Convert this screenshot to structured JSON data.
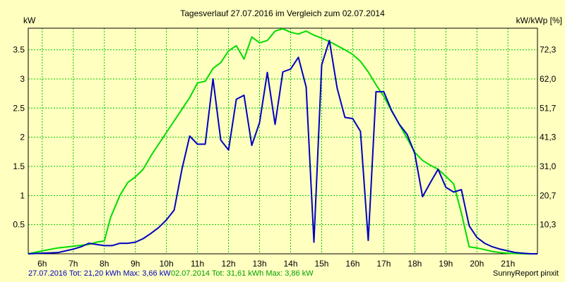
{
  "chart_data": {
    "type": "line",
    "title": "Tagesverlauf 27.07.2016 im Vergleich zum 02.07.2014",
    "ylabel_left": "kW",
    "ylabel_right": "kW/kWp [%]",
    "xlim": [
      5.55,
      21.95
    ],
    "ylim": [
      0,
      3.87
    ],
    "x_ticks": [
      6,
      7,
      8,
      9,
      10,
      11,
      12,
      13,
      14,
      15,
      16,
      17,
      18,
      19,
      20,
      21
    ],
    "x_tick_labels": [
      "6h",
      "7h",
      "8h",
      "9h",
      "10h",
      "11h",
      "12h",
      "13h",
      "14h",
      "15h",
      "16h",
      "17h",
      "18h",
      "19h",
      "20h",
      "21h"
    ],
    "y_ticks_left": [
      0.5,
      1,
      1.5,
      2,
      2.5,
      3,
      3.5
    ],
    "y_tick_labels_left": [
      "0.5",
      "1",
      "1.5",
      "2",
      "2.5",
      "3",
      "3.5"
    ],
    "y_ticks_right": [
      0.5,
      1,
      1.5,
      2,
      2.5,
      3,
      3.5
    ],
    "y_tick_labels_right": [
      "10,3",
      "20,7",
      "31,0",
      "41,3",
      "51,7",
      "62,0",
      "72,3"
    ],
    "grid": true,
    "series": [
      {
        "name": "27.07.2016",
        "color": "#0000c0",
        "x": [
          5.55,
          6.5,
          7.0,
          7.25,
          7.5,
          8.0,
          8.25,
          8.5,
          8.75,
          9.0,
          9.25,
          9.5,
          9.75,
          10.0,
          10.25,
          10.5,
          10.75,
          11.0,
          11.25,
          11.5,
          11.75,
          12.0,
          12.25,
          12.5,
          12.75,
          13.0,
          13.25,
          13.5,
          13.75,
          14.0,
          14.25,
          14.5,
          14.75,
          15.0,
          15.25,
          15.5,
          15.75,
          16.0,
          16.25,
          16.5,
          16.75,
          17.0,
          17.25,
          17.5,
          17.75,
          18.0,
          18.25,
          18.5,
          18.75,
          19.0,
          19.25,
          19.5,
          19.75,
          20.0,
          20.25,
          20.5,
          20.75,
          21.0,
          21.25,
          21.5,
          21.75,
          21.95
        ],
        "y": [
          0.0,
          0.02,
          0.08,
          0.12,
          0.18,
          0.14,
          0.14,
          0.18,
          0.18,
          0.2,
          0.26,
          0.35,
          0.45,
          0.58,
          0.75,
          1.45,
          2.02,
          1.88,
          1.88,
          3.0,
          1.95,
          1.78,
          2.65,
          2.72,
          1.86,
          2.25,
          3.11,
          2.22,
          3.12,
          3.17,
          3.37,
          2.86,
          0.2,
          3.24,
          3.66,
          2.84,
          2.34,
          2.32,
          2.1,
          0.23,
          2.78,
          2.78,
          2.46,
          2.22,
          2.05,
          1.72,
          0.98,
          1.22,
          1.45,
          1.14,
          1.06,
          1.1,
          0.48,
          0.28,
          0.18,
          0.12,
          0.08,
          0.05,
          0.02,
          0.01,
          0.0,
          0.0
        ]
      },
      {
        "name": "02.07.2014",
        "color": "#00dc00",
        "x": [
          5.55,
          6.0,
          6.5,
          7.0,
          7.5,
          7.75,
          8.0,
          8.2,
          8.5,
          8.75,
          9.0,
          9.25,
          9.5,
          9.75,
          10.0,
          10.25,
          10.5,
          10.75,
          11.0,
          11.25,
          11.5,
          11.75,
          12.0,
          12.25,
          12.5,
          12.75,
          13.0,
          13.25,
          13.5,
          13.75,
          14.0,
          14.25,
          14.5,
          14.75,
          15.0,
          15.25,
          15.5,
          15.75,
          16.0,
          16.25,
          16.5,
          16.75,
          17.0,
          17.25,
          17.5,
          17.75,
          18.0,
          18.25,
          18.5,
          18.75,
          19.0,
          19.25,
          19.5,
          19.75,
          20.0,
          20.25,
          20.5,
          20.75,
          21.0,
          21.5,
          21.95
        ],
        "y": [
          0.0,
          0.05,
          0.1,
          0.13,
          0.16,
          0.2,
          0.22,
          0.62,
          1.0,
          1.22,
          1.32,
          1.45,
          1.68,
          1.88,
          2.08,
          2.28,
          2.48,
          2.68,
          2.93,
          2.96,
          3.18,
          3.28,
          3.48,
          3.57,
          3.34,
          3.72,
          3.62,
          3.66,
          3.82,
          3.86,
          3.8,
          3.77,
          3.82,
          3.75,
          3.7,
          3.64,
          3.57,
          3.5,
          3.42,
          3.3,
          3.12,
          2.9,
          2.7,
          2.45,
          2.22,
          1.98,
          1.74,
          1.6,
          1.52,
          1.45,
          1.33,
          1.2,
          0.7,
          0.12,
          0.1,
          0.07,
          0.04,
          0.02,
          0.01,
          0.0,
          0.0
        ]
      }
    ]
  },
  "footer": {
    "series1_text": "27.07.2016 Tot: 21,20 kWh Max: 3,66 kW",
    "series2_text": "02.07.2014 Tot: 31,61 kWh Max: 3,86 kW",
    "credit": "SunnyReport pinxit",
    "series1_color": "#0000c0",
    "series2_color": "#00a000"
  }
}
